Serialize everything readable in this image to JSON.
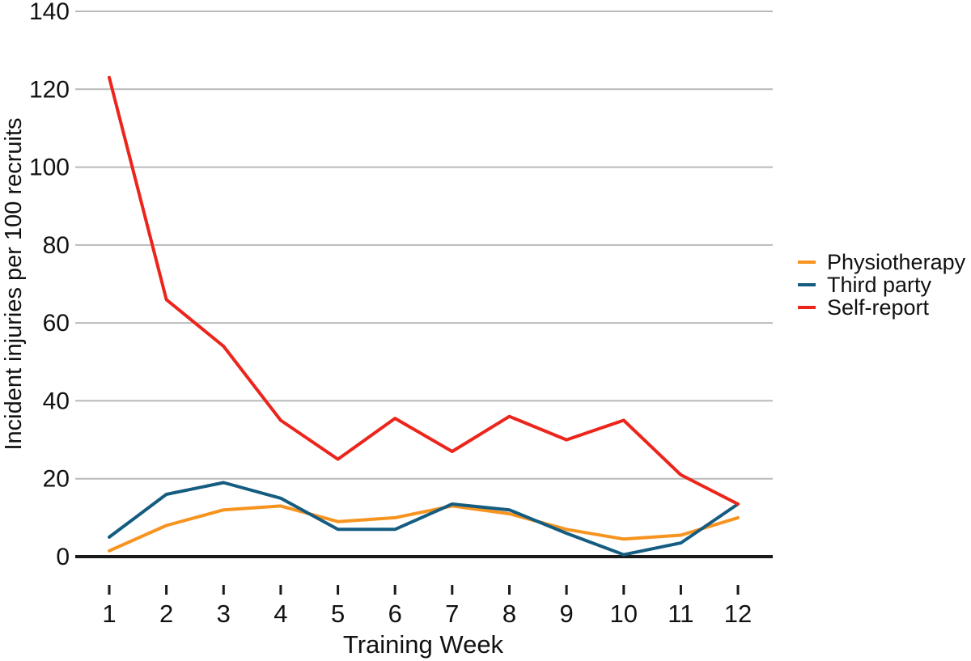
{
  "figure": {
    "background": "#ffffff"
  },
  "chart_data": {
    "type": "line",
    "title": "",
    "xlabel": "Training Week",
    "ylabel": "Incident injuries per 100 recruits",
    "x": [
      1,
      2,
      3,
      4,
      5,
      6,
      7,
      8,
      9,
      10,
      11,
      12
    ],
    "ylim": [
      0,
      140
    ],
    "yticks": [
      0,
      20,
      40,
      60,
      80,
      100,
      120,
      140
    ],
    "grid": "horizontal",
    "legend_position": "right",
    "series": [
      {
        "name": "Physiotherapy",
        "color": "#F6941F",
        "values": [
          1.5,
          8,
          12,
          13,
          9,
          10,
          13,
          11,
          7,
          4.5,
          5.5,
          10
        ]
      },
      {
        "name": "Third party",
        "color": "#155C81",
        "values": [
          5,
          16,
          19,
          15,
          7,
          7,
          13.5,
          12,
          6,
          0.5,
          3.5,
          13.5
        ]
      },
      {
        "name": "Self-report",
        "color": "#EC251C",
        "values": [
          123,
          66,
          54,
          35,
          25,
          35.5,
          27,
          36,
          30,
          35,
          21,
          13.5
        ]
      }
    ],
    "style": {
      "grid_color": "#b9b9b9",
      "axis_color": "#1a1a1a",
      "text_color": "#111111"
    }
  }
}
